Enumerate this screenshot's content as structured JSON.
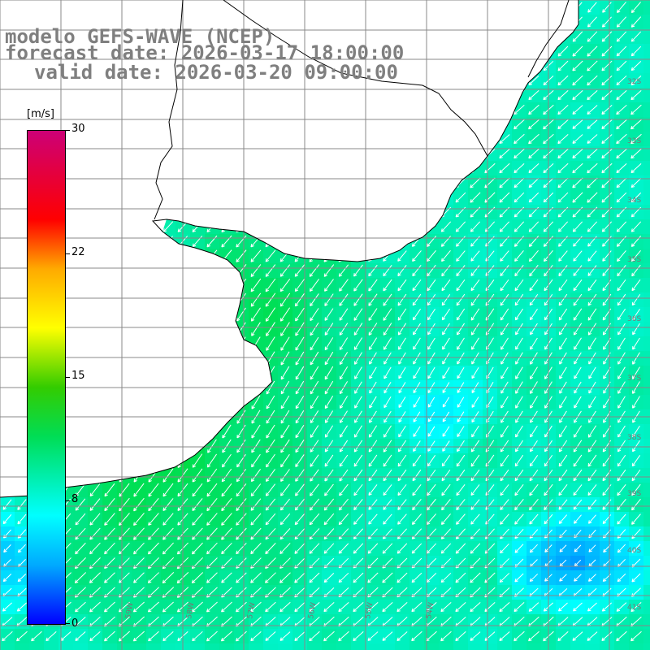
{
  "title": {
    "line1": "modelo GEFS-WAVE (NCEP)",
    "line2": "forecast date: 2026-03-17 18:00:00",
    "line3": "valid date: 2026-03-20 09:00:00"
  },
  "colorbar": {
    "unit": "[m/s]",
    "ticks": [
      "30",
      "22",
      "15",
      "8",
      "0"
    ]
  },
  "grid_labels": {
    "latitude": [
      "32S",
      "33S",
      "34S",
      "35S",
      "36S",
      "37S",
      "38S",
      "39S",
      "40S",
      "41S"
    ],
    "longitude": [
      "59W",
      "58W",
      "57W",
      "56W",
      "55W",
      "54W"
    ]
  },
  "colors": {
    "land": "#ffffff",
    "coast": "#000000",
    "grid": "#888888",
    "arrows": "#ffffff",
    "title_text": "#7f7f7f"
  },
  "map_data": {
    "field": "wind speed",
    "unit": "m/s",
    "scale_min": 0,
    "scale_max": 30,
    "arrow_direction": "mostly toward southwest"
  }
}
